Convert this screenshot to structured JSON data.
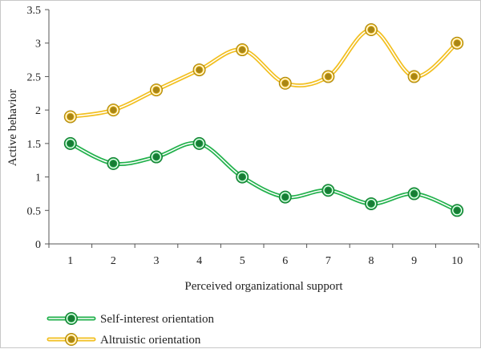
{
  "chart_data": {
    "type": "line",
    "title": "",
    "xlabel": "Perceived organizational support",
    "ylabel": "Active behavior",
    "x": [
      1,
      2,
      3,
      4,
      5,
      6,
      7,
      8,
      9,
      10
    ],
    "ylim": [
      0,
      3.5
    ],
    "yticks": [
      "0",
      "0.5",
      "1",
      "1.5",
      "2",
      "2.5",
      "3",
      "3.5"
    ],
    "grid": false,
    "legend_position": "bottom-left",
    "series": [
      {
        "name": "Self-interest orientation",
        "color": "#22b14c",
        "values": [
          1.5,
          1.2,
          1.3,
          1.5,
          1.0,
          0.7,
          0.8,
          0.6,
          0.75,
          0.5
        ]
      },
      {
        "name": "Altruistic orientation",
        "color": "#f2bf1f",
        "values": [
          1.9,
          2.0,
          2.3,
          2.6,
          2.9,
          2.4,
          2.5,
          3.2,
          2.5,
          3.0
        ]
      }
    ]
  }
}
